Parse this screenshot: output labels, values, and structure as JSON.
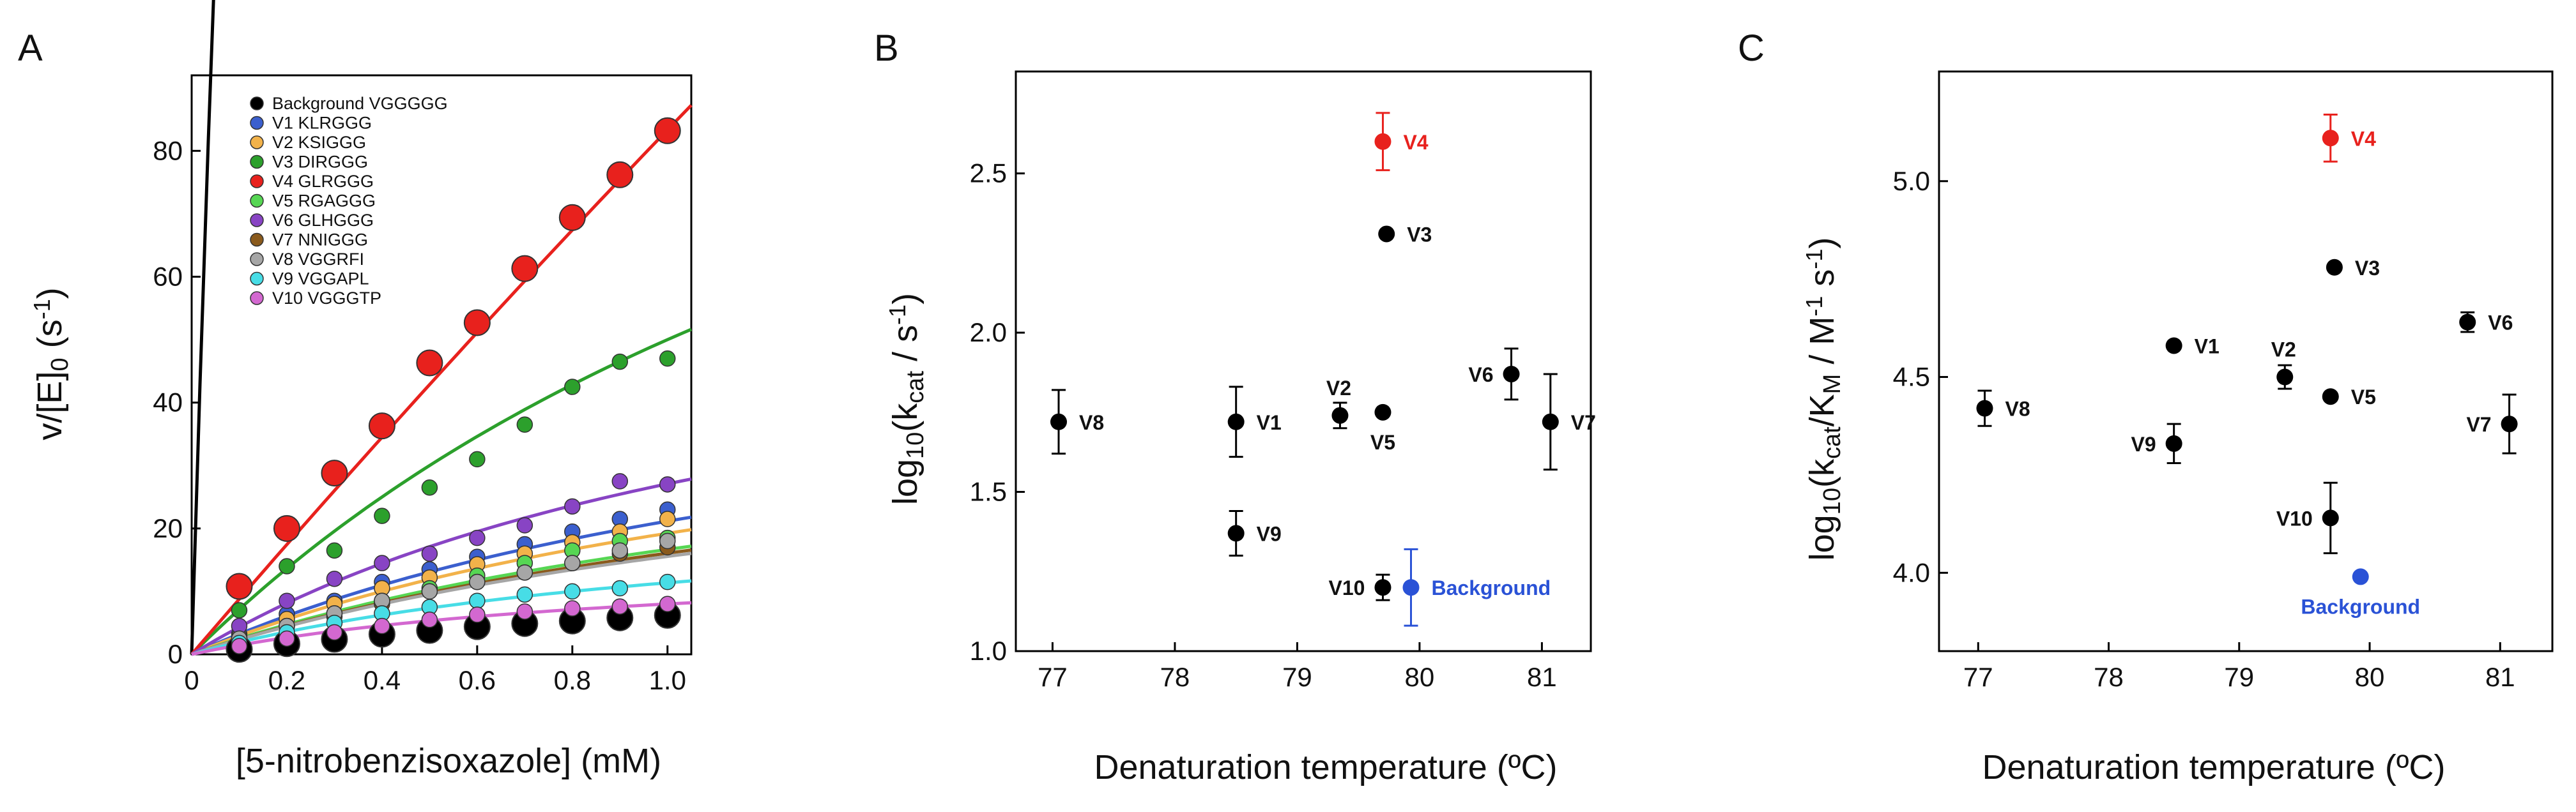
{
  "figure": {
    "panels": [
      {
        "letter": "A"
      },
      {
        "letter": "B"
      },
      {
        "letter": "C"
      }
    ]
  },
  "chart_data": [
    {
      "type": "scatter",
      "panel": "A",
      "title": "",
      "xlabel": "[5-nitrobenzisoxazole] (mM)",
      "ylabel": "v/[E]0 (s-1)",
      "xlim": [
        0,
        1.05
      ],
      "ylim": [
        0,
        92
      ],
      "xticks": [
        0,
        0.2,
        0.4,
        0.6,
        0.8,
        1.0
      ],
      "xtick_labels": [
        "0",
        "0.2",
        "0.4",
        "0.6",
        "0.8",
        "1.0"
      ],
      "yticks": [
        0,
        20,
        40,
        60,
        80
      ],
      "ytick_labels": [
        "0",
        "20",
        "40",
        "60",
        "80"
      ],
      "legend_position": "top-left",
      "x": [
        0.1,
        0.2,
        0.3,
        0.4,
        0.5,
        0.6,
        0.7,
        0.8,
        0.9,
        1.0
      ],
      "series": [
        {
          "name": "Background VGGGGG",
          "color": "#000000",
          "big": true,
          "fit": [
            900,
            0.35
          ],
          "values": [
            0.8,
            1.7,
            2.4,
            3.2,
            3.8,
            4.4,
            4.9,
            5.3,
            5.8,
            6.2
          ]
        },
        {
          "name": "V1 KLRGGG",
          "color": "#3b5fce",
          "big": false,
          "fit": [
            55,
            1.6
          ],
          "values": [
            3.2,
            6.4,
            8.5,
            11.5,
            13.5,
            15.5,
            17.5,
            19.5,
            21.5,
            23.0
          ]
        },
        {
          "name": "V2 KSIGGG",
          "color": "#f2b24a",
          "big": false,
          "fit": [
            50,
            1.6
          ],
          "values": [
            2.8,
            5.6,
            8.0,
            10.5,
            12.2,
            14.3,
            16.0,
            17.8,
            19.5,
            21.5
          ]
        },
        {
          "name": "V3 DIRGGG",
          "color": "#2ca02c",
          "big": false,
          "fit": [
            150,
            2.0
          ],
          "values": [
            7.0,
            14.0,
            16.5,
            22.0,
            26.5,
            31.0,
            36.5,
            42.5,
            46.5,
            47.0
          ]
        },
        {
          "name": "V4 GLRGGG",
          "color": "#e8211d",
          "big": true,
          "fit": [
            1500,
            17.0
          ],
          "values": [
            10.8,
            20.0,
            28.8,
            36.3,
            46.3,
            52.7,
            61.3,
            69.4,
            76.2,
            83.2
          ]
        },
        {
          "name": "V5 RGAGGG",
          "color": "#56d653",
          "big": false,
          "fit": [
            45,
            1.7
          ],
          "values": [
            2.5,
            4.5,
            6.5,
            8.5,
            10.5,
            12.5,
            14.5,
            16.5,
            18.0,
            18.5
          ]
        },
        {
          "name": "V6 GLHGGG",
          "color": "#8844c4",
          "big": false,
          "fit": [
            65,
            1.4
          ],
          "values": [
            4.5,
            8.5,
            12.0,
            14.5,
            16.0,
            18.5,
            20.5,
            23.5,
            27.5,
            27.0
          ]
        },
        {
          "name": "V7 NNIGGG",
          "color": "#8a5a1c",
          "big": false,
          "fit": [
            45,
            1.8
          ],
          "values": [
            2.3,
            4.5,
            6.0,
            8.0,
            10.0,
            11.5,
            13.0,
            14.5,
            16.0,
            17.0
          ]
        },
        {
          "name": "V8 VGGRFI",
          "color": "#a6a6a6",
          "big": false,
          "fit": [
            42,
            1.7
          ],
          "values": [
            2.5,
            4.5,
            6.5,
            8.5,
            10.0,
            11.5,
            13.0,
            14.5,
            16.5,
            18.0
          ]
        },
        {
          "name": "V9 VGGAPL",
          "color": "#47dde6",
          "big": false,
          "fit": [
            25,
            1.2
          ],
          "values": [
            1.8,
            3.5,
            5.0,
            6.5,
            7.5,
            8.5,
            9.5,
            10.0,
            10.5,
            11.5
          ]
        },
        {
          "name": "V10 VGGGTP",
          "color": "#d368d0",
          "big": false,
          "fit": [
            16,
            1.0
          ],
          "values": [
            1.3,
            2.5,
            3.5,
            4.5,
            5.5,
            6.3,
            6.8,
            7.3,
            7.6,
            8.0
          ]
        }
      ]
    },
    {
      "type": "scatter",
      "panel": "B",
      "title": "",
      "xlabel": "Denaturation temperature (ºC)",
      "ylabel": "log10(kcat / s-1)",
      "xlim": [
        76.7,
        81.4
      ],
      "ylim": [
        1.0,
        2.82
      ],
      "xticks": [
        77,
        78,
        79,
        80,
        81
      ],
      "xtick_labels": [
        "77",
        "78",
        "79",
        "80",
        "81"
      ],
      "yticks": [
        1.0,
        1.5,
        2.0,
        2.5
      ],
      "ytick_labels": [
        "1.0",
        "1.5",
        "2.0",
        "2.5"
      ],
      "points": [
        {
          "label": "V8",
          "x": 77.05,
          "y": 1.72,
          "err": 0.1,
          "color": "#000000",
          "label_pos": "right"
        },
        {
          "label": "V1",
          "x": 78.5,
          "y": 1.72,
          "err": 0.11,
          "color": "#000000",
          "label_pos": "right"
        },
        {
          "label": "V9",
          "x": 78.5,
          "y": 1.37,
          "err": 0.07,
          "color": "#000000",
          "label_pos": "right"
        },
        {
          "label": "V2",
          "x": 79.35,
          "y": 1.74,
          "err": 0.04,
          "color": "#000000",
          "label_pos": "above"
        },
        {
          "label": "V5",
          "x": 79.7,
          "y": 1.75,
          "err": 0.0,
          "color": "#000000",
          "label_pos": "below"
        },
        {
          "label": "V3",
          "x": 79.73,
          "y": 2.31,
          "err": 0.0,
          "color": "#000000",
          "label_pos": "right"
        },
        {
          "label": "V4",
          "x": 79.7,
          "y": 2.6,
          "err": 0.09,
          "color": "#e8211d",
          "label_pos": "right"
        },
        {
          "label": "V10",
          "x": 79.7,
          "y": 1.2,
          "err": 0.04,
          "color": "#000000",
          "label_pos": "left"
        },
        {
          "label": "Background",
          "x": 79.93,
          "y": 1.2,
          "err": 0.12,
          "color": "#2a52d6",
          "label_pos": "right"
        },
        {
          "label": "V6",
          "x": 80.75,
          "y": 1.87,
          "err": 0.08,
          "color": "#000000",
          "label_pos": "left"
        },
        {
          "label": "V7",
          "x": 81.07,
          "y": 1.72,
          "err": 0.15,
          "color": "#000000",
          "label_pos": "right"
        }
      ]
    },
    {
      "type": "scatter",
      "panel": "C",
      "title": "",
      "xlabel": "Denaturation temperature (ºC)",
      "ylabel": "log10(kcat/KM / M-1 s-1)",
      "xlim": [
        76.7,
        81.4
      ],
      "ylim": [
        3.8,
        5.28
      ],
      "xticks": [
        77,
        78,
        79,
        80,
        81
      ],
      "xtick_labels": [
        "77",
        "78",
        "79",
        "80",
        "81"
      ],
      "yticks": [
        4.0,
        4.5,
        5.0
      ],
      "ytick_labels": [
        "4.0",
        "4.5",
        "5.0"
      ],
      "points": [
        {
          "label": "V8",
          "x": 77.05,
          "y": 4.42,
          "err": 0.045,
          "color": "#000000",
          "label_pos": "right"
        },
        {
          "label": "V1",
          "x": 78.5,
          "y": 4.58,
          "err": 0.0,
          "color": "#000000",
          "label_pos": "right"
        },
        {
          "label": "V9",
          "x": 78.5,
          "y": 4.33,
          "err": 0.05,
          "color": "#000000",
          "label_pos": "left"
        },
        {
          "label": "V2",
          "x": 79.35,
          "y": 4.5,
          "err": 0.03,
          "color": "#000000",
          "label_pos": "above"
        },
        {
          "label": "V5",
          "x": 79.7,
          "y": 4.45,
          "err": 0.0,
          "color": "#000000",
          "label_pos": "right"
        },
        {
          "label": "V3",
          "x": 79.73,
          "y": 4.78,
          "err": 0.0,
          "color": "#000000",
          "label_pos": "right"
        },
        {
          "label": "V4",
          "x": 79.7,
          "y": 5.11,
          "err": 0.06,
          "color": "#e8211d",
          "label_pos": "right"
        },
        {
          "label": "V10",
          "x": 79.7,
          "y": 4.14,
          "err": 0.09,
          "color": "#000000",
          "label_pos": "left"
        },
        {
          "label": "Background",
          "x": 79.93,
          "y": 3.99,
          "err": 0.0,
          "color": "#2a52d6",
          "label_pos": "below"
        },
        {
          "label": "V6",
          "x": 80.75,
          "y": 4.64,
          "err": 0.025,
          "color": "#000000",
          "label_pos": "right"
        },
        {
          "label": "V7",
          "x": 81.07,
          "y": 4.38,
          "err": 0.075,
          "color": "#000000",
          "label_pos": "left"
        }
      ]
    }
  ]
}
